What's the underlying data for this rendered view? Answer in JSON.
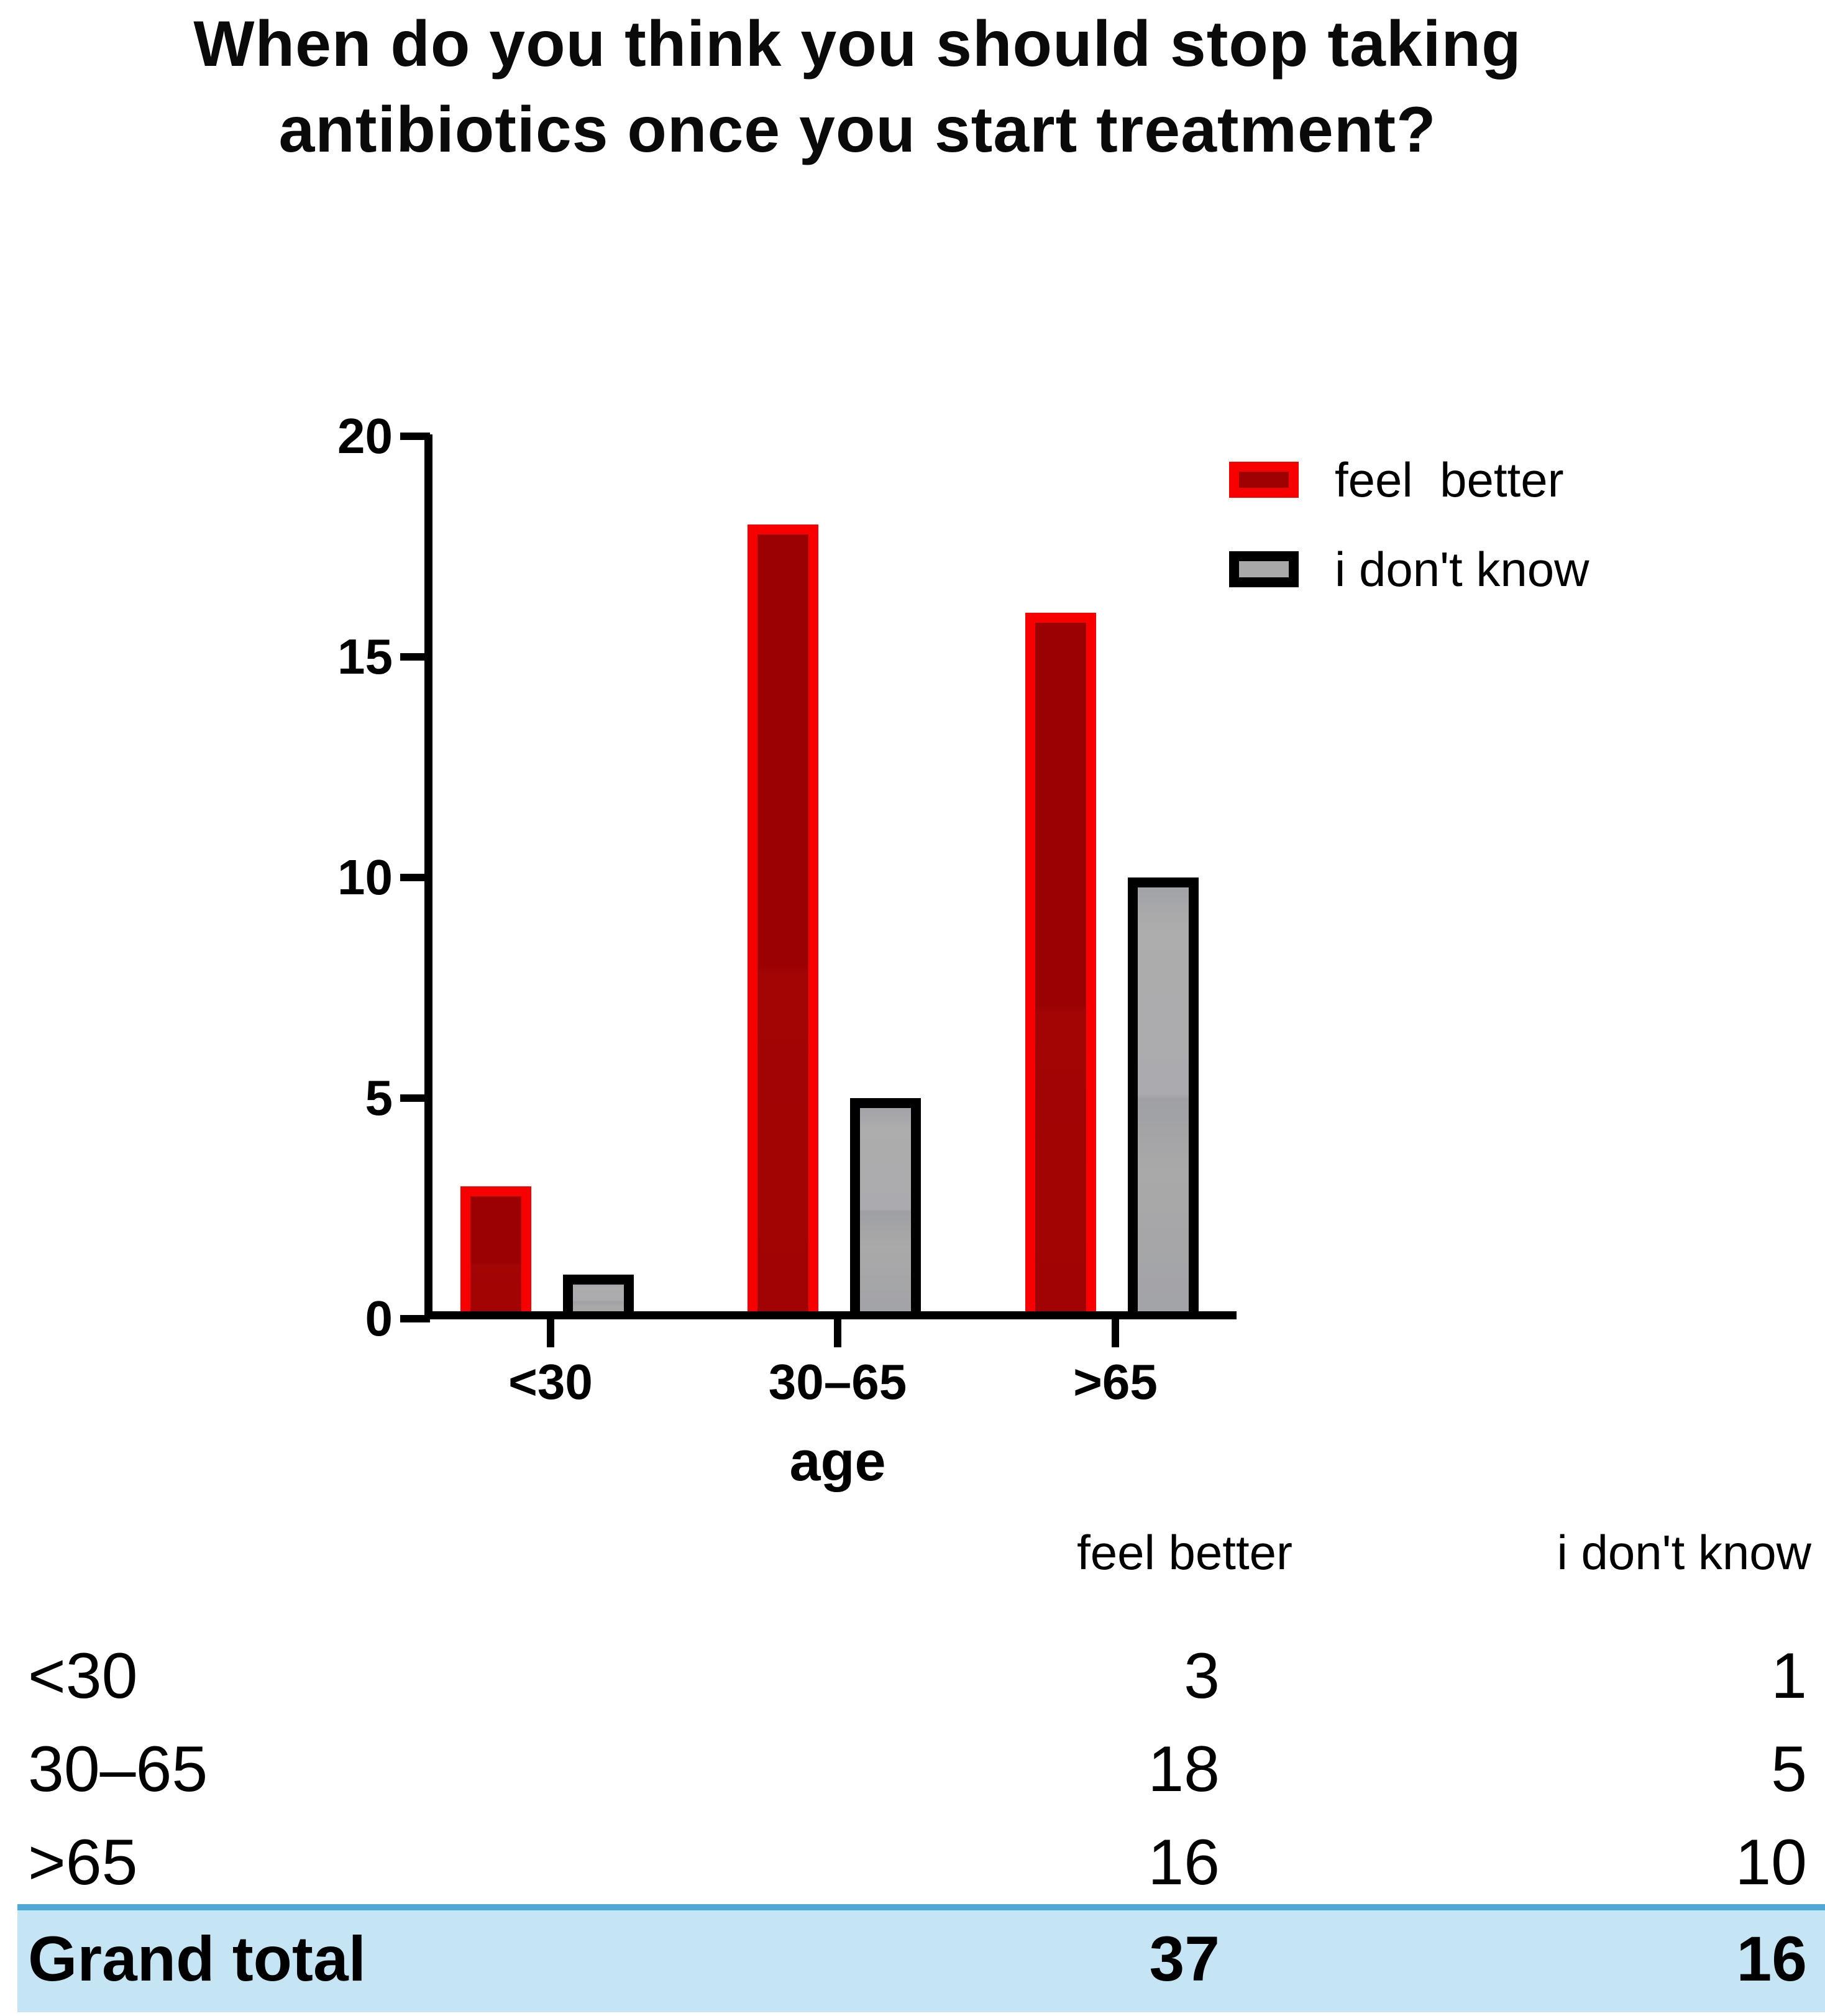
{
  "title": {
    "line1": "When do you think you should stop taking",
    "line2": "antibiotics once you start treatment?"
  },
  "chart_data": {
    "type": "bar",
    "title": "When do you think you should stop taking antibiotics once you start treatment?",
    "categories": [
      "<30",
      "30–65",
      ">65"
    ],
    "series": [
      {
        "name": "feel  better",
        "values": [
          3,
          18,
          16
        ],
        "fill": "#9d0102",
        "border": "#f80000"
      },
      {
        "name": "i don't know",
        "values": [
          1,
          5,
          10
        ],
        "fill": "#a9a9a9",
        "border": "#000000"
      }
    ],
    "xlabel": "age",
    "ylabel": "",
    "ylim": [
      0,
      20
    ],
    "y_ticks": [
      "0",
      "5",
      "10",
      "15",
      "20"
    ],
    "grid": false,
    "legend_position": "top-right"
  },
  "table": {
    "columns": [
      "feel better",
      "i don't know"
    ],
    "rows": [
      {
        "label": "<30",
        "feel_better": "3",
        "i_dont_know": "1"
      },
      {
        "label": "30–65",
        "feel_better": "18",
        "i_dont_know": "5"
      },
      {
        "label": ">65",
        "feel_better": "16",
        "i_dont_know": "10"
      }
    ],
    "grand_total": {
      "label": "Grand total",
      "feel_better": "37",
      "i_dont_know": "16"
    },
    "highlight_bg": "#c5e5f5",
    "highlight_border": "#4fa8d5"
  }
}
